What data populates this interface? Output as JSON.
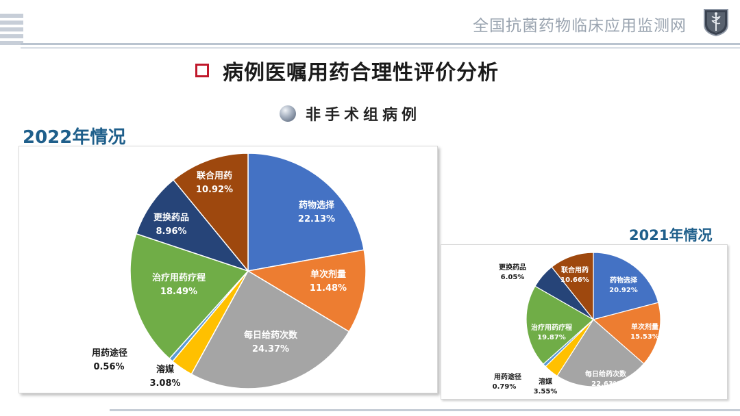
{
  "header": {
    "org_name": "全国抗菌药物临床应用监测网"
  },
  "page_title": "病例医嘱用药合理性评价分析",
  "subtitle": "非手术组病例",
  "colors": {
    "title_bullet": "#c0182b",
    "year_label": "#1f5f8b"
  },
  "chart_data": [
    {
      "type": "pie",
      "title": "2022年情况",
      "categories": [
        "药物选择",
        "单次剂量",
        "每日给药次数",
        "溶媒",
        "用药途径",
        "治疗用药疗程",
        "更换药品",
        "联合用药"
      ],
      "values": [
        22.13,
        11.48,
        24.37,
        3.08,
        0.56,
        18.49,
        8.96,
        10.92
      ],
      "value_labels": [
        "22.13%",
        "11.48%",
        "24.37%",
        "3.08%",
        "0.56%",
        "18.49%",
        "8.96%",
        "10.92%"
      ],
      "colors": [
        "#4472c4",
        "#ed7d31",
        "#a5a5a5",
        "#ffc000",
        "#5b9bd5",
        "#70ad47",
        "#264478",
        "#9e480e"
      ]
    },
    {
      "type": "pie",
      "title": "2021年情况",
      "categories": [
        "药物选择",
        "单次剂量",
        "每日给药次数",
        "溶媒",
        "用药途径",
        "治疗用药疗程",
        "更换药品",
        "联合用药"
      ],
      "values": [
        20.92,
        15.53,
        22.63,
        3.55,
        0.79,
        19.87,
        6.05,
        10.66
      ],
      "value_labels": [
        "20.92%",
        "15.53%",
        "22.63%",
        "3.55%",
        "0.79%",
        "19.87%",
        "6.05%",
        "10.66%"
      ],
      "colors": [
        "#4472c4",
        "#ed7d31",
        "#a5a5a5",
        "#ffc000",
        "#5b9bd5",
        "#70ad47",
        "#264478",
        "#9e480e"
      ]
    }
  ]
}
